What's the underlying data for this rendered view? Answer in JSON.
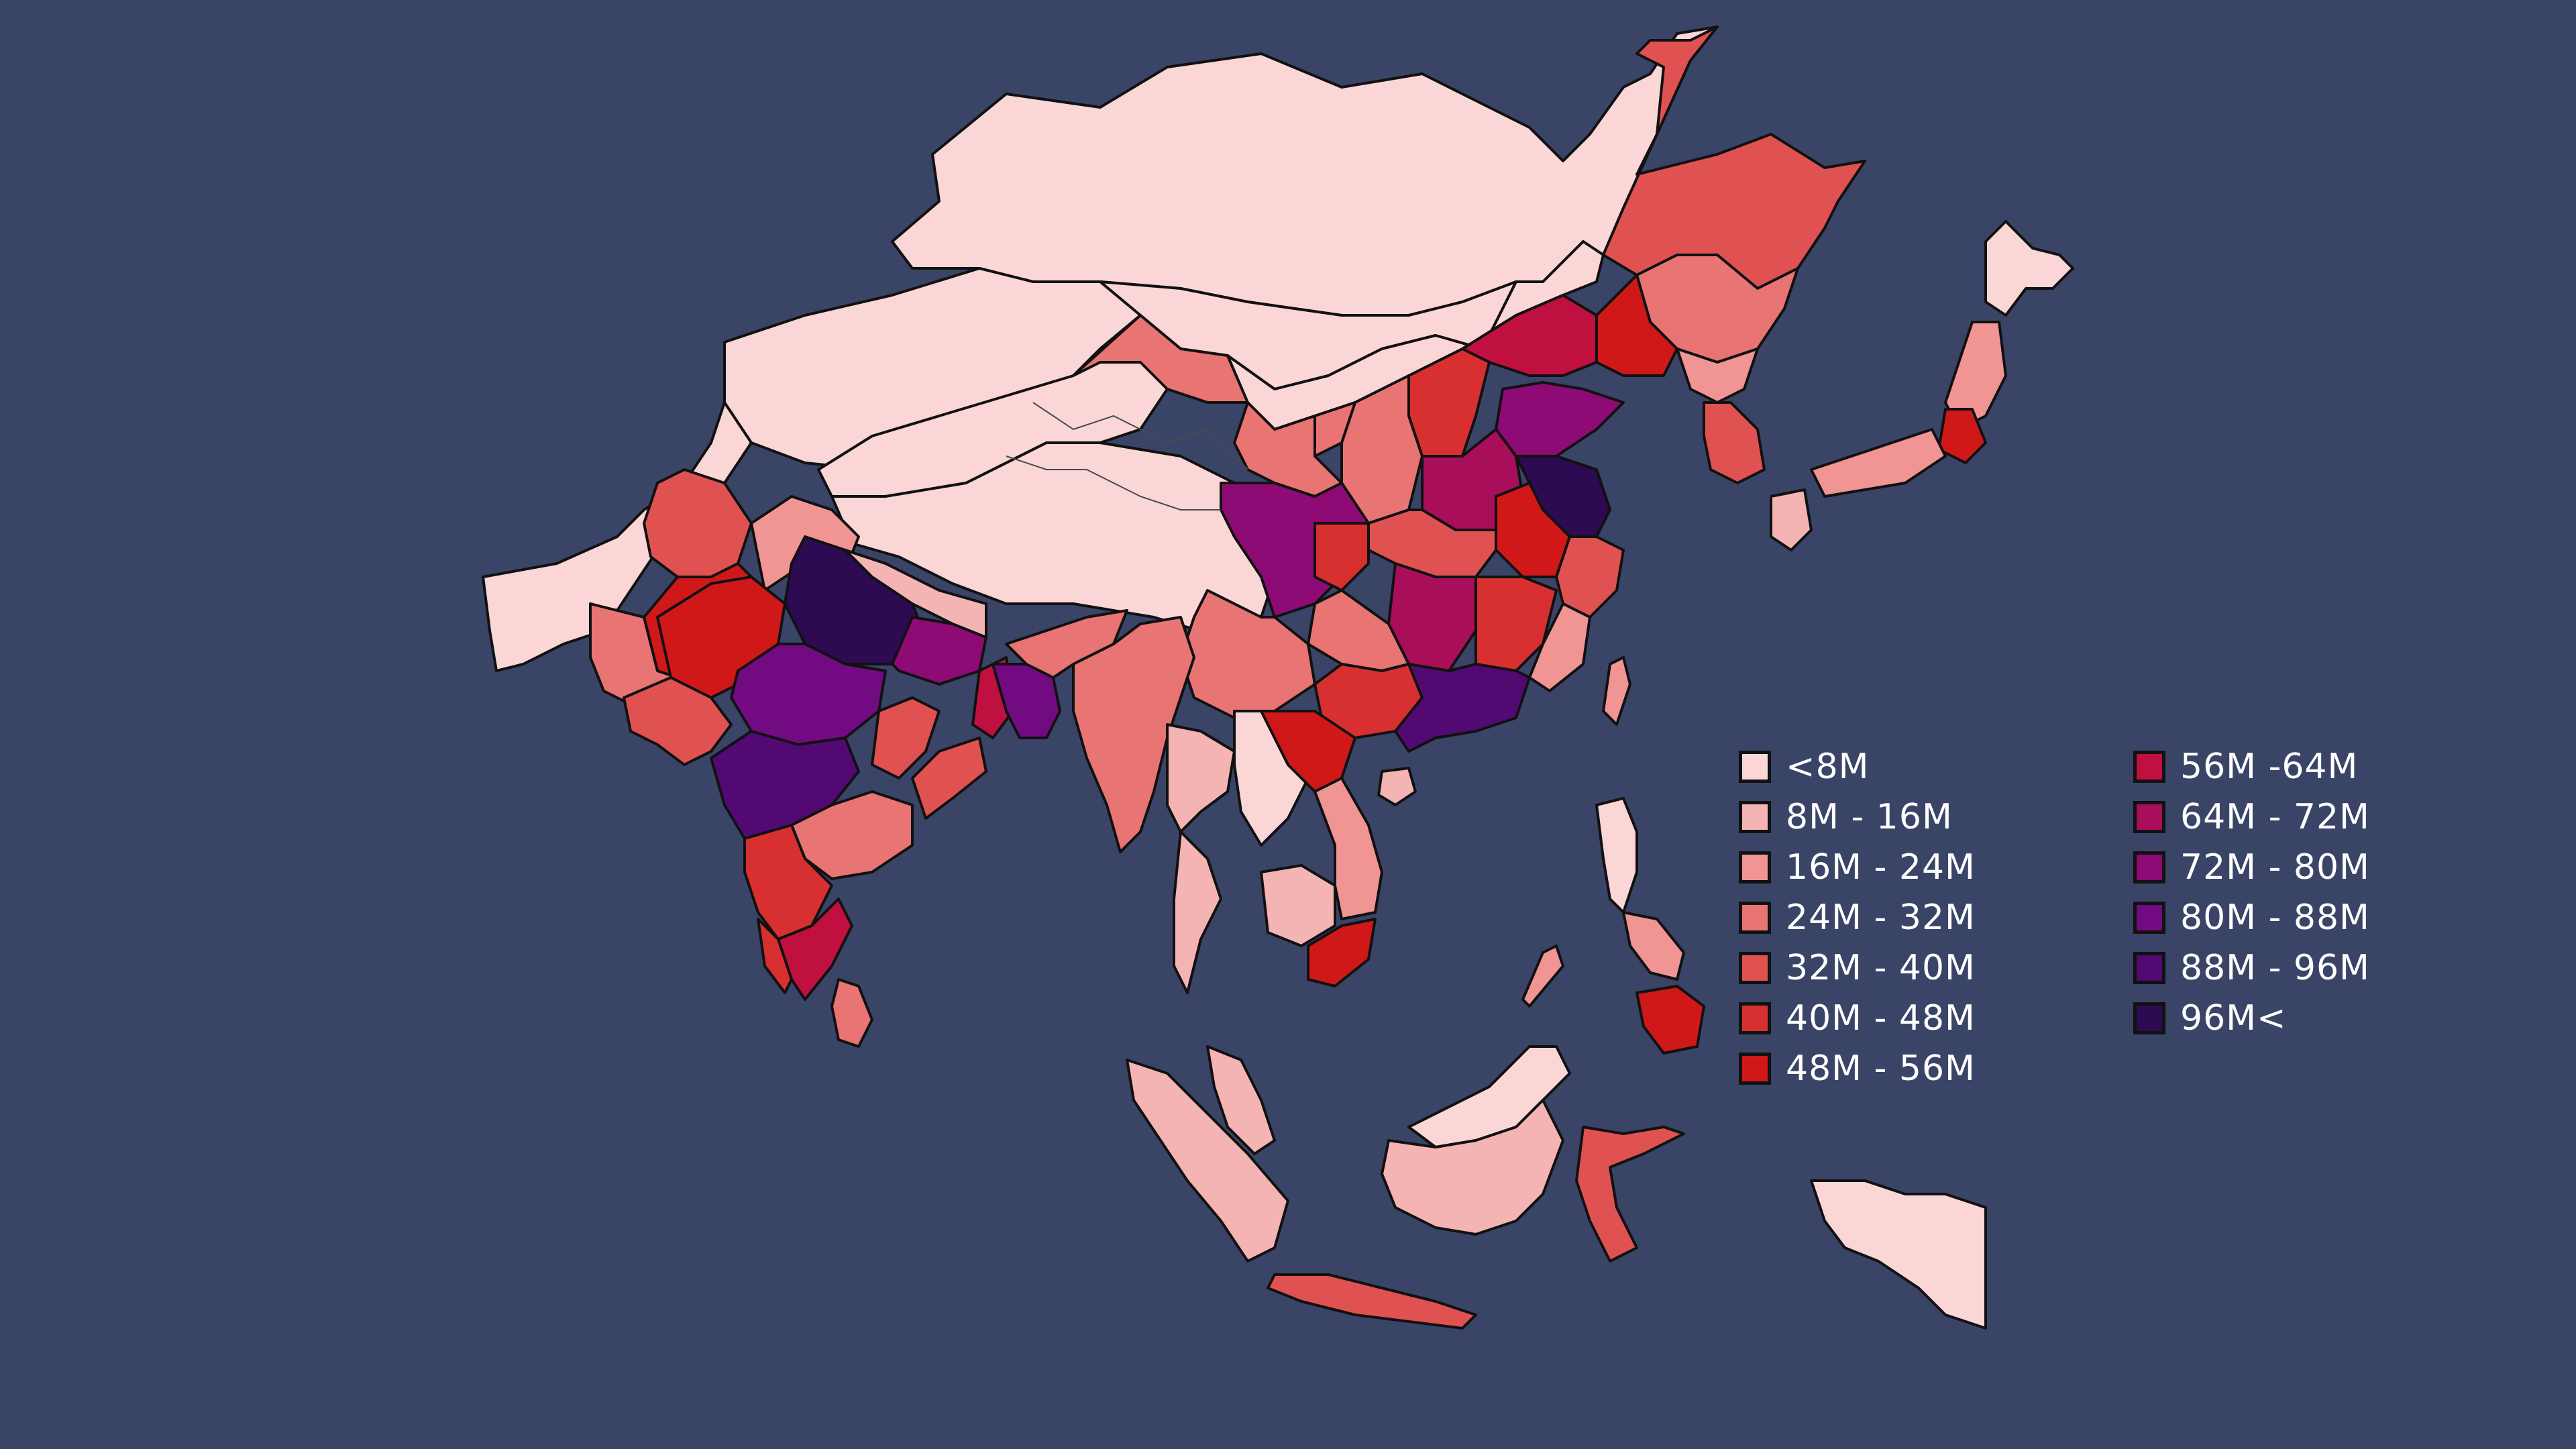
{
  "map": {
    "background": "#3a4467",
    "legend": {
      "left": [
        {
          "label": "<8M",
          "color": "#fad6d6"
        },
        {
          "label": "8M - 16M",
          "color": "#f5b4b4"
        },
        {
          "label": "16M - 24M",
          "color": "#f09494"
        },
        {
          "label": "24M - 32M",
          "color": "#e97474"
        },
        {
          "label": "32M - 40M",
          "color": "#e05252"
        },
        {
          "label": "40M - 48M",
          "color": "#d83030"
        },
        {
          "label": "48M - 56M",
          "color": "#d01818"
        }
      ],
      "right": [
        {
          "label": "56M -64M",
          "color": "#bf1040"
        },
        {
          "label": "64M - 72M",
          "color": "#a80e5a"
        },
        {
          "label": "72M - 80M",
          "color": "#8e0a74"
        },
        {
          "label": "80M - 88M",
          "color": "#720a82"
        },
        {
          "label": "88M - 96M",
          "color": "#520a72"
        },
        {
          "label": "96M<",
          "color": "#2e0a52"
        }
      ]
    }
  }
}
